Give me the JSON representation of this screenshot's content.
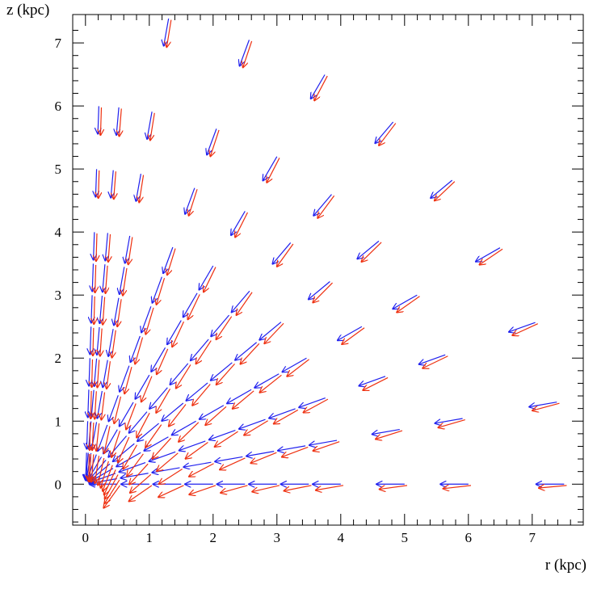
{
  "chart_data": {
    "type": "vector-field",
    "title": "",
    "xlabel": "r (kpc)",
    "ylabel": "z (kpc)",
    "xlim": [
      -0.2,
      7.8
    ],
    "ylim": [
      -0.65,
      7.45
    ],
    "xticks": [
      0,
      1,
      2,
      3,
      4,
      5,
      6,
      7
    ],
    "yticks": [
      0,
      1,
      2,
      3,
      4,
      5,
      6,
      7
    ],
    "grid": false,
    "legend": "none",
    "radii_kpc": [
      0.5,
      1.0,
      1.5,
      2.0,
      2.5,
      3.0,
      3.5,
      4.0,
      5.0,
      6.0,
      7.5
    ],
    "angles_deg": [
      0,
      10,
      20,
      30,
      40,
      50,
      60,
      70,
      80,
      85,
      88
    ],
    "series": [
      {
        "color": "#2020ee",
        "description_points": "one arrow per (radius, angle) site, pointing toward the origin",
        "arrow_length_kpc": 0.45
      },
      {
        "color": "#ee3010",
        "description_points": "one arrow per (radius, angle) site, pointing below the origin",
        "arrow_length_kpc": 0.45
      }
    ]
  }
}
